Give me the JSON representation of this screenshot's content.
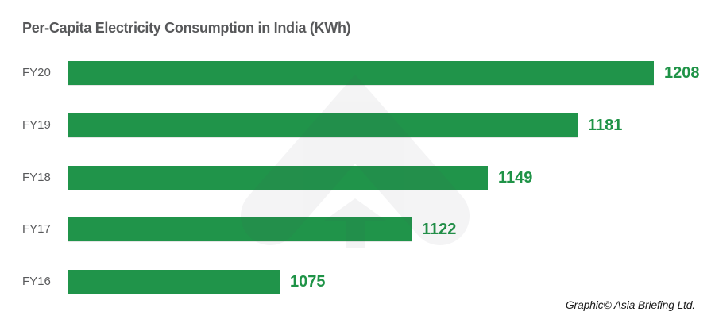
{
  "title": "Per-Capita Electricity Consumption in India (KWh)",
  "credit": "Graphic© Asia Briefing Ltd.",
  "watermark": {
    "icon": "asia-briefing-logo"
  },
  "colors": {
    "bar": "#20944A",
    "value_text": "#1F9347",
    "label_text": "#58595B",
    "title_text": "#57585A",
    "credit_text": "#1C1C1C",
    "watermark_gray": "#F4F4F5"
  },
  "chart_data": {
    "type": "bar",
    "orientation": "horizontal",
    "title": "Per-Capita Electricity Consumption in India (KWh)",
    "categories": [
      "FY20",
      "FY19",
      "FY18",
      "FY17",
      "FY16"
    ],
    "values": [
      1208,
      1181,
      1149,
      1122,
      1075
    ],
    "xlabel": "",
    "ylabel": "",
    "xlim": [
      1000,
      1208
    ],
    "grid": false,
    "legend": false,
    "value_labels": true
  }
}
